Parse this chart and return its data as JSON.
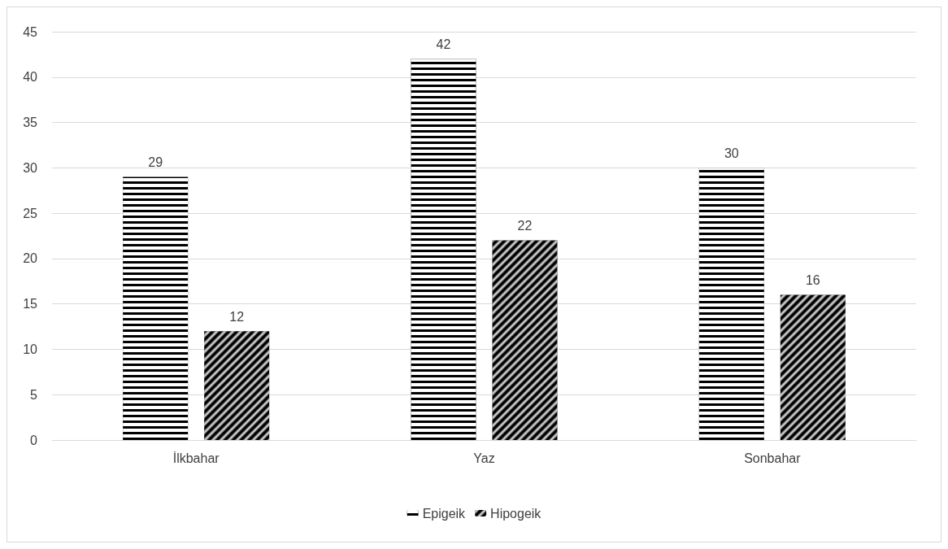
{
  "chart_data": {
    "type": "bar",
    "categories": [
      "İlkbahar",
      "Yaz",
      "Sonbahar"
    ],
    "series": [
      {
        "name": "Epigeik",
        "color": "#000000",
        "values": [
          29,
          42,
          30
        ]
      },
      {
        "name": "Hipogeik",
        "color": "#000000",
        "values": [
          12,
          22,
          16
        ]
      }
    ],
    "ylim": [
      0,
      45
    ],
    "yticks": [
      0,
      5,
      10,
      15,
      20,
      25,
      30,
      35,
      40,
      45
    ],
    "grid": "y",
    "legend": "bottom",
    "data_labels": true
  }
}
